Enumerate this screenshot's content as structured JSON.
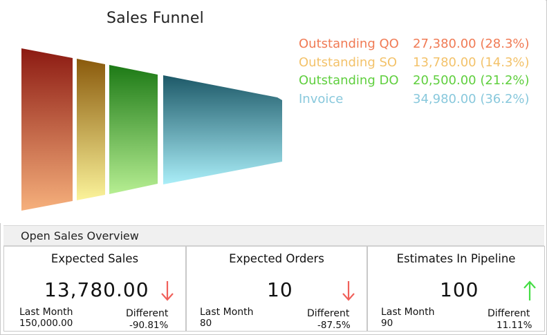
{
  "funnel": {
    "title": "Sales Funnel",
    "items": [
      {
        "name": "Outstanding QO",
        "value": "27,380.00 (28.3%)",
        "color": "#f07a54"
      },
      {
        "name": "Outstanding SO",
        "value": "13,780.00 (14.3%)",
        "color": "#f3c26a"
      },
      {
        "name": "Outstanding DO",
        "value": "20,500.00 (21.2%)",
        "color": "#5fcf3e"
      },
      {
        "name": "Invoice",
        "value": "34,980.00 (36.2%)",
        "color": "#88c8dc"
      }
    ]
  },
  "overview": {
    "title": "Open Sales Overview",
    "cards": [
      {
        "title": "Expected Sales",
        "value": "13,780.00",
        "trend": "down",
        "last_month_label": "Last Month",
        "last_month_value": "150,000.00",
        "diff_label": "Different",
        "diff_value": "-90.81%"
      },
      {
        "title": "Expected Orders",
        "value": "10",
        "trend": "down",
        "last_month_label": "Last Month",
        "last_month_value": "80",
        "diff_label": "Different",
        "diff_value": "-87.5%"
      },
      {
        "title": "Estimates In Pipeline",
        "value": "100",
        "trend": "up",
        "last_month_label": "Last Month",
        "last_month_value": "90",
        "diff_label": "Different",
        "diff_value": "11.11%"
      }
    ]
  },
  "colors": {
    "down_arrow": "#f0605a",
    "up_arrow": "#44dd44"
  }
}
